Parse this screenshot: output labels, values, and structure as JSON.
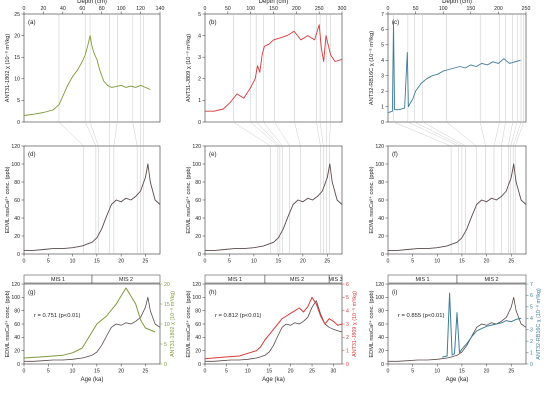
{
  "figure": {
    "top_axis_label": "Depth (cm)",
    "bottom_axis_label": "Age (ka)",
    "mis_labels": [
      "MIS 1",
      "MIS 2",
      "MIS 3"
    ],
    "colors": {
      "ANT31-1802": "#7f9a3a",
      "ANT31-J809": "#d63b3b",
      "ANT32-RB16C": "#3f7c98",
      "EDML": "#5b4a4a"
    }
  },
  "chart_data": [
    {
      "id": "a",
      "panel_label": "(a)",
      "type": "line",
      "xlabel": "Depth (cm)",
      "ylabel": "ANT31-1802 χ (10⁻⁸ m³/kg)",
      "xlim": [
        0,
        140
      ],
      "ylim": [
        0,
        25
      ],
      "xticks": [
        0,
        20,
        40,
        60,
        80,
        100,
        120,
        140
      ],
      "yticks": [
        0,
        5,
        10,
        15,
        20,
        25
      ],
      "x": [
        0,
        10,
        20,
        30,
        36,
        40,
        45,
        50,
        55,
        60,
        63,
        66,
        68,
        70,
        72,
        75,
        78,
        82,
        86,
        90,
        95,
        100,
        105,
        110,
        115,
        120,
        125,
        130
      ],
      "y": [
        1.5,
        1.8,
        2.2,
        2.8,
        4,
        6,
        8.5,
        10.5,
        12,
        14,
        15.5,
        18,
        20,
        17.5,
        16,
        14.5,
        12,
        9.5,
        8.5,
        8,
        8.2,
        8.5,
        8,
        8.3,
        8,
        8.5,
        8,
        7.5
      ]
    },
    {
      "id": "b",
      "panel_label": "(b)",
      "type": "line",
      "xlabel": "Depth (cm)",
      "ylabel": "ANT31-J809 χ (10⁻⁸ m³/kg)",
      "xlim": [
        0,
        300
      ],
      "ylim": [
        0,
        5
      ],
      "xticks": [
        0,
        50,
        100,
        150,
        200,
        250,
        300
      ],
      "yticks": [
        0,
        1,
        2,
        3,
        4,
        5
      ],
      "x": [
        0,
        20,
        40,
        55,
        70,
        85,
        100,
        110,
        115,
        120,
        125,
        130,
        140,
        150,
        165,
        180,
        195,
        210,
        225,
        240,
        250,
        255,
        260,
        265,
        275,
        285,
        300
      ],
      "y": [
        0.5,
        0.5,
        0.6,
        0.9,
        1.3,
        1.1,
        1.6,
        2.0,
        2.6,
        2.3,
        3.1,
        3.5,
        3.6,
        3.8,
        3.9,
        4.0,
        4.2,
        3.8,
        4.0,
        3.8,
        4.5,
        3.4,
        2.8,
        4.0,
        3.1,
        2.8,
        2.9
      ]
    },
    {
      "id": "c",
      "panel_label": "(c)",
      "type": "line",
      "xlabel": "Depth (cm)",
      "ylabel": "ANT32-RB16C χ (10⁻⁸ m³/kg)",
      "xlim": [
        0,
        250
      ],
      "ylim": [
        0,
        7
      ],
      "xticks": [
        0,
        50,
        100,
        150,
        200,
        250
      ],
      "yticks": [
        0,
        1,
        2,
        3,
        4,
        5,
        6,
        7
      ],
      "x": [
        0,
        8,
        10,
        12,
        20,
        30,
        35,
        37,
        40,
        45,
        50,
        60,
        70,
        80,
        90,
        100,
        110,
        120,
        130,
        140,
        150,
        160,
        170,
        180,
        190,
        200,
        210,
        220,
        230,
        240
      ],
      "y": [
        0.6,
        0.7,
        6.5,
        0.8,
        0.8,
        0.9,
        4.5,
        1.0,
        1.2,
        1.5,
        2.0,
        2.5,
        2.8,
        3.0,
        3.1,
        3.3,
        3.4,
        3.5,
        3.6,
        3.5,
        3.7,
        3.6,
        3.8,
        3.7,
        3.9,
        3.8,
        4.1,
        3.8,
        3.9,
        4.0
      ]
    },
    {
      "id": "d",
      "panel_label": "(d)",
      "type": "line",
      "xlabel": "",
      "ylabel": "EDML nssCa²⁺ conc. (ppb)",
      "xlim": [
        0,
        28
      ],
      "ylim": [
        0,
        120
      ],
      "xticks": [
        0,
        5,
        10,
        15,
        20,
        25
      ],
      "yticks": [
        0,
        20,
        40,
        60,
        80,
        100,
        120
      ],
      "x": [
        0,
        2,
        4,
        6,
        8,
        10,
        12,
        13,
        14,
        15,
        16,
        17,
        18,
        19,
        20,
        21,
        22,
        23,
        24,
        25,
        25.5,
        26,
        27,
        28
      ],
      "y": [
        4,
        4,
        5,
        6,
        6,
        7,
        9,
        11,
        13,
        18,
        28,
        42,
        55,
        60,
        58,
        62,
        60,
        64,
        70,
        85,
        100,
        80,
        60,
        55
      ]
    },
    {
      "id": "e",
      "panel_label": "(e)",
      "type": "line",
      "xlabel": "",
      "ylabel": "EDML nssCa²⁺ conc. (ppb)",
      "xlim": [
        0,
        28
      ],
      "ylim": [
        0,
        120
      ],
      "xticks": [
        0,
        5,
        10,
        15,
        20,
        25
      ],
      "yticks": [
        0,
        20,
        40,
        60,
        80,
        100,
        120
      ],
      "x": [
        0,
        2,
        4,
        6,
        8,
        10,
        12,
        13,
        14,
        15,
        16,
        17,
        18,
        19,
        20,
        21,
        22,
        23,
        24,
        25,
        25.5,
        26,
        27,
        28
      ],
      "y": [
        4,
        4,
        5,
        6,
        6,
        7,
        9,
        11,
        13,
        18,
        28,
        42,
        55,
        60,
        58,
        62,
        60,
        64,
        70,
        85,
        100,
        80,
        60,
        55
      ]
    },
    {
      "id": "f",
      "panel_label": "(f)",
      "type": "line",
      "xlabel": "",
      "ylabel": "EDML nssCa²⁺ conc. (ppb)",
      "xlim": [
        0,
        28
      ],
      "ylim": [
        0,
        120
      ],
      "xticks": [
        0,
        5,
        10,
        15,
        20,
        25
      ],
      "yticks": [
        0,
        20,
        40,
        60,
        80,
        100,
        120
      ],
      "x": [
        0,
        2,
        4,
        6,
        8,
        10,
        12,
        13,
        14,
        15,
        16,
        17,
        18,
        19,
        20,
        21,
        22,
        23,
        24,
        25,
        25.5,
        26,
        27,
        28
      ],
      "y": [
        4,
        4,
        5,
        6,
        6,
        7,
        9,
        11,
        13,
        18,
        28,
        42,
        55,
        60,
        58,
        62,
        60,
        64,
        70,
        85,
        100,
        80,
        60,
        55
      ]
    },
    {
      "id": "g",
      "panel_label": "(g)",
      "type": "line",
      "annotation": "r = 0.751 (p<0.01)",
      "xlabel": "Age (ka)",
      "ylabel": "EDML nssCa²⁺ conc. (ppb)",
      "y2label": "ANT31-1802 χ (10⁻⁸ m³/kg)",
      "xlim": [
        0,
        28
      ],
      "ylim": [
        0,
        120
      ],
      "y2lim": [
        0,
        20
      ],
      "xticks": [
        0,
        5,
        10,
        15,
        20,
        25
      ],
      "yticks": [
        0,
        20,
        40,
        60,
        80,
        100,
        120
      ],
      "y2ticks": [
        0,
        5,
        10,
        15,
        20
      ],
      "mis": [
        {
          "label": "MIS 1",
          "from": 0,
          "to": 14
        },
        {
          "label": "MIS 2",
          "from": 14,
          "to": 28
        }
      ],
      "series": [
        {
          "axis": "left",
          "color": "#5b4a4a",
          "x": [
            0,
            2,
            4,
            6,
            8,
            10,
            12,
            13,
            14,
            15,
            16,
            17,
            18,
            19,
            20,
            21,
            22,
            23,
            24,
            25,
            25.5,
            26,
            27,
            28
          ],
          "y": [
            4,
            4,
            5,
            6,
            6,
            7,
            9,
            11,
            13,
            18,
            28,
            42,
            55,
            60,
            58,
            62,
            60,
            64,
            70,
            85,
            100,
            80,
            60,
            55
          ]
        },
        {
          "axis": "right",
          "color": "#7f9a3a",
          "x": [
            0,
            4,
            8,
            10,
            12,
            13,
            14,
            15,
            16,
            17,
            18,
            19,
            20,
            21,
            22,
            23,
            24,
            25,
            26,
            27
          ],
          "y": [
            1.5,
            1.8,
            2.2,
            2.8,
            4,
            6,
            8,
            10,
            11,
            12,
            13.5,
            15,
            17,
            19,
            17,
            15,
            11,
            9,
            8.5,
            8
          ]
        }
      ]
    },
    {
      "id": "h",
      "panel_label": "(h)",
      "type": "line",
      "annotation": "r = 0.812 (p<0.01)",
      "xlabel": "Age (ka)",
      "ylabel": "EDML nssCa²⁺ conc. (ppb)",
      "y2label": "ANT31-J809 χ (10⁻⁸ m³/kg)",
      "xlim": [
        0,
        32
      ],
      "ylim": [
        0,
        120
      ],
      "y2lim": [
        0,
        6
      ],
      "xticks": [
        0,
        5,
        10,
        15,
        20,
        25,
        30
      ],
      "yticks": [
        0,
        20,
        40,
        60,
        80,
        100,
        120
      ],
      "y2ticks": [
        0,
        1,
        2,
        3,
        4,
        5,
        6
      ],
      "mis": [
        {
          "label": "MIS 1",
          "from": 0,
          "to": 14
        },
        {
          "label": "MIS 2",
          "from": 14,
          "to": 29
        },
        {
          "label": "MIS 3",
          "from": 29,
          "to": 32
        }
      ],
      "series": [
        {
          "axis": "left",
          "color": "#5b4a4a",
          "x": [
            0,
            2,
            4,
            6,
            8,
            10,
            12,
            13,
            14,
            15,
            16,
            17,
            18,
            19,
            20,
            21,
            22,
            23,
            24,
            25,
            26,
            27,
            28,
            29,
            30,
            31,
            32
          ],
          "y": [
            4,
            4,
            5,
            6,
            6,
            7,
            9,
            11,
            13,
            18,
            28,
            42,
            55,
            60,
            58,
            62,
            60,
            64,
            70,
            85,
            95,
            75,
            60,
            55,
            52,
            50,
            48
          ]
        },
        {
          "axis": "right",
          "color": "#d63b3b",
          "x": [
            0,
            4,
            8,
            10,
            12,
            13,
            14,
            15,
            16,
            17,
            18,
            19,
            20,
            21,
            22,
            23,
            24,
            25,
            26,
            27,
            28,
            29,
            30,
            31,
            32
          ],
          "y": [
            0.4,
            0.5,
            0.6,
            0.8,
            1.0,
            1.3,
            1.8,
            2.2,
            2.6,
            3.0,
            3.4,
            3.6,
            3.8,
            4.0,
            4.2,
            3.9,
            4.3,
            5.0,
            4.5,
            3.6,
            3.0,
            3.4,
            3.2,
            2.9,
            3.0
          ]
        }
      ]
    },
    {
      "id": "i",
      "panel_label": "(i)",
      "type": "line",
      "annotation": "r = 0.855 (p<0.01)",
      "xlabel": "Age (ka)",
      "ylabel": "EDML nssCa²⁺ conc. (ppb)",
      "y2label": "ANT32-RB16C χ (10⁻⁸ m³/kg)",
      "xlim": [
        0,
        28
      ],
      "ylim": [
        0,
        120
      ],
      "y2lim": [
        0,
        7
      ],
      "xticks": [
        0,
        5,
        10,
        15,
        20,
        25
      ],
      "yticks": [
        0,
        20,
        40,
        60,
        80,
        100,
        120
      ],
      "y2ticks": [
        0,
        1,
        2,
        3,
        4,
        5,
        6,
        7
      ],
      "mis": [
        {
          "label": "MIS 1",
          "from": 0,
          "to": 14
        },
        {
          "label": "MIS 2",
          "from": 14,
          "to": 28
        }
      ],
      "series": [
        {
          "axis": "left",
          "color": "#5b4a4a",
          "x": [
            0,
            2,
            4,
            6,
            8,
            10,
            12,
            13,
            14,
            15,
            16,
            17,
            18,
            19,
            20,
            21,
            22,
            23,
            24,
            25,
            25.5,
            26,
            27,
            28
          ],
          "y": [
            4,
            4,
            5,
            6,
            6,
            7,
            9,
            11,
            13,
            18,
            28,
            42,
            55,
            60,
            58,
            62,
            60,
            64,
            70,
            85,
            100,
            80,
            60,
            55
          ]
        },
        {
          "axis": "right",
          "color": "#3f7c98",
          "x": [
            11,
            12,
            12.5,
            13,
            13.5,
            14,
            14.5,
            15,
            16,
            17,
            18,
            19,
            20,
            21,
            22,
            23,
            24,
            25,
            26,
            27
          ],
          "y": [
            0.6,
            0.7,
            6.2,
            0.8,
            0.9,
            4.5,
            1.0,
            1.3,
            1.8,
            2.4,
            2.9,
            3.1,
            3.3,
            3.4,
            3.5,
            3.6,
            3.8,
            3.7,
            3.9,
            4.0
          ]
        }
      ]
    }
  ]
}
